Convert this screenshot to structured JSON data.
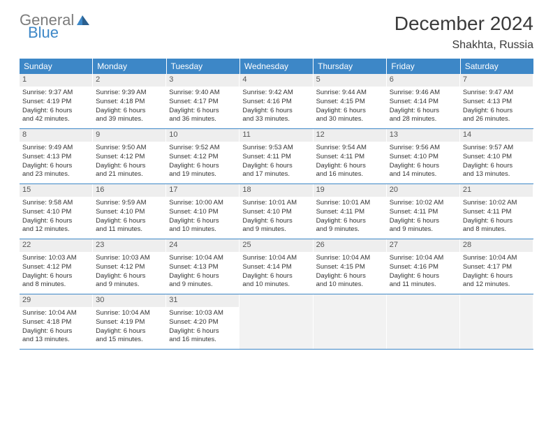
{
  "logo": {
    "part1": "General",
    "part2": "Blue"
  },
  "title": "December 2024",
  "subtitle": "Shakhta, Russia",
  "weekdays": [
    "Sunday",
    "Monday",
    "Tuesday",
    "Wednesday",
    "Thursday",
    "Friday",
    "Saturday"
  ],
  "colors": {
    "header_bg": "#3d87c7",
    "header_fg": "#ffffff",
    "daynum_bg": "#eeeeee",
    "border": "#3d87c7",
    "text": "#333333",
    "title": "#3a3a3a",
    "logo_gray": "#7c7c7c",
    "logo_blue": "#3d87c7"
  },
  "fonts": {
    "title_size": 28,
    "subtitle_size": 16,
    "weekday_size": 12,
    "daynum_size": 11,
    "body_size": 9.5
  },
  "weeks": [
    [
      {
        "n": "1",
        "sr": "Sunrise: 9:37 AM",
        "ss": "Sunset: 4:19 PM",
        "d1": "Daylight: 6 hours",
        "d2": "and 42 minutes."
      },
      {
        "n": "2",
        "sr": "Sunrise: 9:39 AM",
        "ss": "Sunset: 4:18 PM",
        "d1": "Daylight: 6 hours",
        "d2": "and 39 minutes."
      },
      {
        "n": "3",
        "sr": "Sunrise: 9:40 AM",
        "ss": "Sunset: 4:17 PM",
        "d1": "Daylight: 6 hours",
        "d2": "and 36 minutes."
      },
      {
        "n": "4",
        "sr": "Sunrise: 9:42 AM",
        "ss": "Sunset: 4:16 PM",
        "d1": "Daylight: 6 hours",
        "d2": "and 33 minutes."
      },
      {
        "n": "5",
        "sr": "Sunrise: 9:44 AM",
        "ss": "Sunset: 4:15 PM",
        "d1": "Daylight: 6 hours",
        "d2": "and 30 minutes."
      },
      {
        "n": "6",
        "sr": "Sunrise: 9:46 AM",
        "ss": "Sunset: 4:14 PM",
        "d1": "Daylight: 6 hours",
        "d2": "and 28 minutes."
      },
      {
        "n": "7",
        "sr": "Sunrise: 9:47 AM",
        "ss": "Sunset: 4:13 PM",
        "d1": "Daylight: 6 hours",
        "d2": "and 26 minutes."
      }
    ],
    [
      {
        "n": "8",
        "sr": "Sunrise: 9:49 AM",
        "ss": "Sunset: 4:13 PM",
        "d1": "Daylight: 6 hours",
        "d2": "and 23 minutes."
      },
      {
        "n": "9",
        "sr": "Sunrise: 9:50 AM",
        "ss": "Sunset: 4:12 PM",
        "d1": "Daylight: 6 hours",
        "d2": "and 21 minutes."
      },
      {
        "n": "10",
        "sr": "Sunrise: 9:52 AM",
        "ss": "Sunset: 4:12 PM",
        "d1": "Daylight: 6 hours",
        "d2": "and 19 minutes."
      },
      {
        "n": "11",
        "sr": "Sunrise: 9:53 AM",
        "ss": "Sunset: 4:11 PM",
        "d1": "Daylight: 6 hours",
        "d2": "and 17 minutes."
      },
      {
        "n": "12",
        "sr": "Sunrise: 9:54 AM",
        "ss": "Sunset: 4:11 PM",
        "d1": "Daylight: 6 hours",
        "d2": "and 16 minutes."
      },
      {
        "n": "13",
        "sr": "Sunrise: 9:56 AM",
        "ss": "Sunset: 4:10 PM",
        "d1": "Daylight: 6 hours",
        "d2": "and 14 minutes."
      },
      {
        "n": "14",
        "sr": "Sunrise: 9:57 AM",
        "ss": "Sunset: 4:10 PM",
        "d1": "Daylight: 6 hours",
        "d2": "and 13 minutes."
      }
    ],
    [
      {
        "n": "15",
        "sr": "Sunrise: 9:58 AM",
        "ss": "Sunset: 4:10 PM",
        "d1": "Daylight: 6 hours",
        "d2": "and 12 minutes."
      },
      {
        "n": "16",
        "sr": "Sunrise: 9:59 AM",
        "ss": "Sunset: 4:10 PM",
        "d1": "Daylight: 6 hours",
        "d2": "and 11 minutes."
      },
      {
        "n": "17",
        "sr": "Sunrise: 10:00 AM",
        "ss": "Sunset: 4:10 PM",
        "d1": "Daylight: 6 hours",
        "d2": "and 10 minutes."
      },
      {
        "n": "18",
        "sr": "Sunrise: 10:01 AM",
        "ss": "Sunset: 4:10 PM",
        "d1": "Daylight: 6 hours",
        "d2": "and 9 minutes."
      },
      {
        "n": "19",
        "sr": "Sunrise: 10:01 AM",
        "ss": "Sunset: 4:11 PM",
        "d1": "Daylight: 6 hours",
        "d2": "and 9 minutes."
      },
      {
        "n": "20",
        "sr": "Sunrise: 10:02 AM",
        "ss": "Sunset: 4:11 PM",
        "d1": "Daylight: 6 hours",
        "d2": "and 9 minutes."
      },
      {
        "n": "21",
        "sr": "Sunrise: 10:02 AM",
        "ss": "Sunset: 4:11 PM",
        "d1": "Daylight: 6 hours",
        "d2": "and 8 minutes."
      }
    ],
    [
      {
        "n": "22",
        "sr": "Sunrise: 10:03 AM",
        "ss": "Sunset: 4:12 PM",
        "d1": "Daylight: 6 hours",
        "d2": "and 8 minutes."
      },
      {
        "n": "23",
        "sr": "Sunrise: 10:03 AM",
        "ss": "Sunset: 4:12 PM",
        "d1": "Daylight: 6 hours",
        "d2": "and 9 minutes."
      },
      {
        "n": "24",
        "sr": "Sunrise: 10:04 AM",
        "ss": "Sunset: 4:13 PM",
        "d1": "Daylight: 6 hours",
        "d2": "and 9 minutes."
      },
      {
        "n": "25",
        "sr": "Sunrise: 10:04 AM",
        "ss": "Sunset: 4:14 PM",
        "d1": "Daylight: 6 hours",
        "d2": "and 10 minutes."
      },
      {
        "n": "26",
        "sr": "Sunrise: 10:04 AM",
        "ss": "Sunset: 4:15 PM",
        "d1": "Daylight: 6 hours",
        "d2": "and 10 minutes."
      },
      {
        "n": "27",
        "sr": "Sunrise: 10:04 AM",
        "ss": "Sunset: 4:16 PM",
        "d1": "Daylight: 6 hours",
        "d2": "and 11 minutes."
      },
      {
        "n": "28",
        "sr": "Sunrise: 10:04 AM",
        "ss": "Sunset: 4:17 PM",
        "d1": "Daylight: 6 hours",
        "d2": "and 12 minutes."
      }
    ],
    [
      {
        "n": "29",
        "sr": "Sunrise: 10:04 AM",
        "ss": "Sunset: 4:18 PM",
        "d1": "Daylight: 6 hours",
        "d2": "and 13 minutes."
      },
      {
        "n": "30",
        "sr": "Sunrise: 10:04 AM",
        "ss": "Sunset: 4:19 PM",
        "d1": "Daylight: 6 hours",
        "d2": "and 15 minutes."
      },
      {
        "n": "31",
        "sr": "Sunrise: 10:03 AM",
        "ss": "Sunset: 4:20 PM",
        "d1": "Daylight: 6 hours",
        "d2": "and 16 minutes."
      },
      null,
      null,
      null,
      null
    ]
  ]
}
